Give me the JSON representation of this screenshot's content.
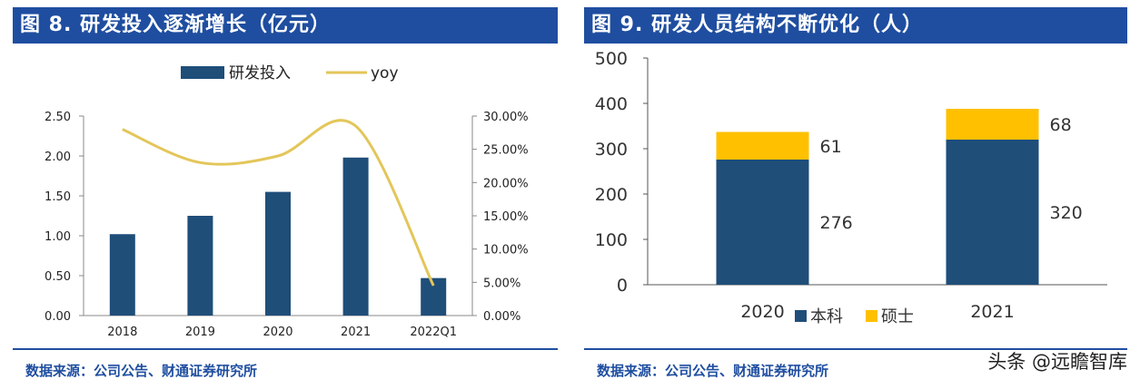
{
  "colors": {
    "header_bg": "#1f4ea0",
    "bar_navy": "#1f4e79",
    "line_yellow": "#e3c65a",
    "bar_yellow": "#ffc000"
  },
  "left": {
    "title": "图 8. 研发投入逐渐增长（亿元）",
    "source": "数据来源：公司公告、财通证券研究所"
  },
  "right": {
    "title": "图 9. 研发人员结构不断优化（人）",
    "source": "数据来源：公司公告、财通证券研究所"
  },
  "watermark": "头条 @远瞻智库",
  "chart_data": [
    {
      "type": "bar",
      "title": "研发投入逐渐增长（亿元）",
      "categories": [
        "2018",
        "2019",
        "2020",
        "2021",
        "2022Q1"
      ],
      "series": [
        {
          "name": "研发投入",
          "type": "bar",
          "axis": "left",
          "values": [
            1.02,
            1.25,
            1.55,
            1.98,
            0.47
          ]
        },
        {
          "name": "yoy",
          "type": "line",
          "axis": "right",
          "values": [
            0.28,
            0.23,
            0.24,
            0.285,
            0.045
          ]
        }
      ],
      "y_left": {
        "ylim": [
          0,
          2.5
        ],
        "ticks": [
          "0.00",
          "0.50",
          "1.00",
          "1.50",
          "2.00",
          "2.50"
        ]
      },
      "y_right": {
        "ylim": [
          0,
          0.3
        ],
        "ticks": [
          "0.00%",
          "5.00%",
          "10.00%",
          "15.00%",
          "20.00%",
          "25.00%",
          "30.00%"
        ]
      },
      "legend": [
        "研发投入",
        "yoy"
      ],
      "legend_position": "top-center"
    },
    {
      "type": "bar",
      "stacked": true,
      "title": "研发人员结构不断优化（人）",
      "categories": [
        "2020",
        "2021"
      ],
      "series": [
        {
          "name": "本科",
          "values": [
            276,
            320
          ]
        },
        {
          "name": "硕士",
          "values": [
            61,
            68
          ]
        }
      ],
      "ylim": [
        0,
        500
      ],
      "y_ticks": [
        "0",
        "100",
        "200",
        "300",
        "400",
        "500"
      ],
      "legend": [
        "本科",
        "硕士"
      ],
      "legend_position": "bottom-center"
    }
  ]
}
